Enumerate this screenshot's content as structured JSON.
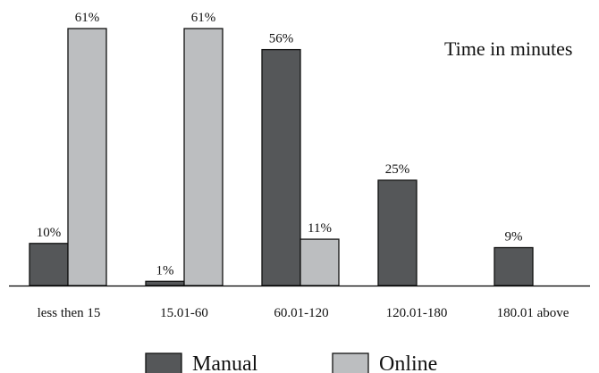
{
  "chart_data": {
    "type": "bar",
    "title": "",
    "xlabel": "",
    "ylabel": "",
    "annotation": "Time in minutes",
    "categories": [
      "less then 15",
      "15.01-60",
      "60.01-120",
      "120.01-180",
      "180.01 above"
    ],
    "series": [
      {
        "name": "Manual",
        "color": "#555759",
        "values": [
          10,
          1,
          56,
          25,
          9
        ],
        "labels": [
          "10%",
          "1%",
          "56%",
          "25%",
          "9%"
        ]
      },
      {
        "name": "Online",
        "color": "#bcbec0",
        "values": [
          61,
          61,
          11,
          null,
          null
        ],
        "labels": [
          "61%",
          "61%",
          "11%",
          "",
          ""
        ]
      }
    ],
    "ylim": [
      0,
      61
    ],
    "grid": false,
    "legend_position": "bottom"
  }
}
